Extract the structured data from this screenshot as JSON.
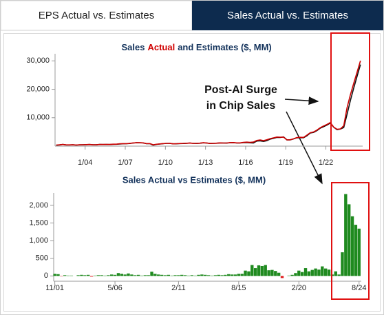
{
  "tabs": [
    "EPS Actual vs. Estimates",
    "Sales Actual vs. Estimates"
  ],
  "active_tab": 1,
  "annotation": [
    "Post-AI Surge",
    "in Chip Sales"
  ],
  "chart_data": [
    {
      "type": "line",
      "title_parts": [
        {
          "text": "Sales",
          "color": "#13325b"
        },
        {
          "text": "Actual",
          "color": "#d00000"
        },
        {
          "text": "and Estimates ($, MM)",
          "color": "#13325b"
        }
      ],
      "x": [
        "2001-11",
        "2002-02",
        "2002-05",
        "2002-08",
        "2002-11",
        "2003-02",
        "2003-05",
        "2003-08",
        "2003-11",
        "2004-02",
        "2004-05",
        "2004-08",
        "2004-11",
        "2005-02",
        "2005-05",
        "2005-08",
        "2005-11",
        "2006-02",
        "2006-05",
        "2006-08",
        "2006-11",
        "2007-02",
        "2007-05",
        "2007-08",
        "2007-11",
        "2008-02",
        "2008-05",
        "2008-08",
        "2008-11",
        "2009-02",
        "2009-05",
        "2009-08",
        "2009-11",
        "2010-02",
        "2010-05",
        "2010-08",
        "2010-11",
        "2011-02",
        "2011-05",
        "2011-08",
        "2011-11",
        "2012-02",
        "2012-05",
        "2012-08",
        "2012-11",
        "2013-02",
        "2013-05",
        "2013-08",
        "2013-11",
        "2014-02",
        "2014-05",
        "2014-08",
        "2014-11",
        "2015-02",
        "2015-05",
        "2015-08",
        "2015-11",
        "2016-02",
        "2016-05",
        "2016-08",
        "2016-11",
        "2017-02",
        "2017-05",
        "2017-08",
        "2017-11",
        "2018-02",
        "2018-05",
        "2018-08",
        "2018-11",
        "2019-02",
        "2019-05",
        "2019-08",
        "2019-11",
        "2020-02",
        "2020-05",
        "2020-08",
        "2020-11",
        "2021-02",
        "2021-05",
        "2021-08",
        "2021-11",
        "2022-02",
        "2022-05",
        "2022-08",
        "2022-11",
        "2023-02",
        "2023-05",
        "2023-08",
        "2023-11",
        "2024-02",
        "2024-05",
        "2024-08"
      ],
      "series": [
        {
          "name": "Estimates",
          "color": "#111111",
          "values": [
            310,
            420,
            590,
            410,
            420,
            460,
            400,
            440,
            450,
            510,
            560,
            480,
            450,
            570,
            560,
            570,
            560,
            640,
            650,
            750,
            820,
            840,
            930,
            1080,
            1180,
            1170,
            1140,
            870,
            880,
            360,
            600,
            740,
            870,
            960,
            970,
            800,
            820,
            900,
            930,
            1000,
            1060,
            980,
            950,
            1010,
            1160,
            1080,
            930,
            970,
            1030,
            1110,
            1080,
            1070,
            1180,
            1210,
            1110,
            1090,
            1240,
            1250,
            1170,
            1120,
            1780,
            1870,
            1660,
            1920,
            2480,
            2740,
            3070,
            3030,
            3240,
            2210,
            2210,
            2550,
            2930,
            2960,
            2970,
            3650,
            4600,
            4830,
            5450,
            6330,
            6830,
            7430,
            8110,
            6660,
            5800,
            6010,
            6520,
            11190,
            16090,
            20410,
            24590,
            28700
          ]
        },
        {
          "name": "Actual",
          "color": "#cc0000",
          "values": [
            370,
            470,
            580,
            430,
            430,
            470,
            400,
            460,
            480,
            530,
            590,
            460,
            460,
            590,
            580,
            580,
            580,
            680,
            680,
            830,
            880,
            880,
            1000,
            1120,
            1200,
            1200,
            1150,
            890,
            900,
            480,
            660,
            780,
            900,
            980,
            1000,
            810,
            840,
            920,
            960,
            1020,
            1070,
            1000,
            960,
            1040,
            1200,
            1110,
            950,
            980,
            1050,
            1140,
            1100,
            1100,
            1230,
            1250,
            1150,
            1150,
            1300,
            1400,
            1300,
            1430,
            2000,
            2170,
            1940,
            2230,
            2640,
            2910,
            3210,
            3120,
            3180,
            2210,
            2220,
            2580,
            3010,
            3110,
            3080,
            3870,
            4730,
            5000,
            5660,
            6510,
            7100,
            7640,
            8290,
            6700,
            5930,
            6050,
            7190,
            13510,
            18120,
            22100,
            26040,
            30040
          ]
        }
      ],
      "xlim": [
        "2001-10",
        "2024-10"
      ],
      "xticks": [
        {
          "value": "2004-01",
          "label": "1/04"
        },
        {
          "value": "2007-01",
          "label": "1/07"
        },
        {
          "value": "2010-01",
          "label": "1/10"
        },
        {
          "value": "2013-01",
          "label": "1/13"
        },
        {
          "value": "2016-01",
          "label": "1/16"
        },
        {
          "value": "2019-01",
          "label": "1/19"
        },
        {
          "value": "2022-01",
          "label": "1/22"
        }
      ],
      "ylim": [
        0,
        32500
      ],
      "yticks": [
        {
          "value": 10000,
          "label": "10,000"
        },
        {
          "value": 20000,
          "label": "20,000"
        },
        {
          "value": 30000,
          "label": "30,000"
        }
      ]
    },
    {
      "type": "bar",
      "title": "Sales Actual vs Estimates ($, MM)",
      "x": [
        "2001-11",
        "2002-02",
        "2002-05",
        "2002-08",
        "2002-11",
        "2003-02",
        "2003-05",
        "2003-08",
        "2003-11",
        "2004-02",
        "2004-05",
        "2004-08",
        "2004-11",
        "2005-02",
        "2005-05",
        "2005-08",
        "2005-11",
        "2006-02",
        "2006-05",
        "2006-08",
        "2006-11",
        "2007-02",
        "2007-05",
        "2007-08",
        "2007-11",
        "2008-02",
        "2008-05",
        "2008-08",
        "2008-11",
        "2009-02",
        "2009-05",
        "2009-08",
        "2009-11",
        "2010-02",
        "2010-05",
        "2010-08",
        "2010-11",
        "2011-02",
        "2011-05",
        "2011-08",
        "2011-11",
        "2012-02",
        "2012-05",
        "2012-08",
        "2012-11",
        "2013-02",
        "2013-05",
        "2013-08",
        "2013-11",
        "2014-02",
        "2014-05",
        "2014-08",
        "2014-11",
        "2015-02",
        "2015-05",
        "2015-08",
        "2015-11",
        "2016-02",
        "2016-05",
        "2016-08",
        "2016-11",
        "2017-02",
        "2017-05",
        "2017-08",
        "2017-11",
        "2018-02",
        "2018-05",
        "2018-08",
        "2018-11",
        "2019-02",
        "2019-05",
        "2019-08",
        "2019-11",
        "2020-02",
        "2020-05",
        "2020-08",
        "2020-11",
        "2021-02",
        "2021-05",
        "2021-08",
        "2021-11",
        "2022-02",
        "2022-05",
        "2022-08",
        "2022-11",
        "2023-02",
        "2023-05",
        "2023-08",
        "2023-11",
        "2024-02",
        "2024-05",
        "2024-08"
      ],
      "values": [
        60,
        50,
        -10,
        20,
        10,
        10,
        0,
        20,
        30,
        20,
        30,
        -20,
        10,
        20,
        20,
        10,
        20,
        40,
        30,
        80,
        60,
        40,
        70,
        40,
        20,
        30,
        10,
        20,
        20,
        120,
        60,
        40,
        30,
        20,
        30,
        10,
        20,
        20,
        30,
        20,
        10,
        20,
        10,
        30,
        40,
        30,
        20,
        10,
        20,
        30,
        20,
        30,
        50,
        40,
        40,
        60,
        60,
        150,
        130,
        310,
        220,
        300,
        280,
        310,
        160,
        170,
        140,
        90,
        -60,
        0,
        10,
        30,
        80,
        150,
        110,
        220,
        130,
        170,
        210,
        180,
        270,
        210,
        180,
        40,
        130,
        40,
        670,
        2320,
        2030,
        1690,
        1450,
        1340
      ],
      "color": "#1f8a1f",
      "negative_color": "#e02020",
      "xlim": [
        "2001-10",
        "2024-10"
      ],
      "xticks": [
        {
          "value": "2001-11",
          "label": "11/01"
        },
        {
          "value": "2006-05",
          "label": "5/06"
        },
        {
          "value": "2011-02",
          "label": "2/11"
        },
        {
          "value": "2015-08",
          "label": "8/15"
        },
        {
          "value": "2020-02",
          "label": "2/20"
        },
        {
          "value": "2024-08",
          "label": "8/24"
        }
      ],
      "ylim": [
        -150,
        2350
      ],
      "yticks": [
        0,
        500,
        {
          "value": 1000,
          "label": "1,000"
        },
        {
          "value": 1500,
          "label": "1,500"
        },
        {
          "value": 2000,
          "label": "2,000"
        }
      ]
    }
  ]
}
